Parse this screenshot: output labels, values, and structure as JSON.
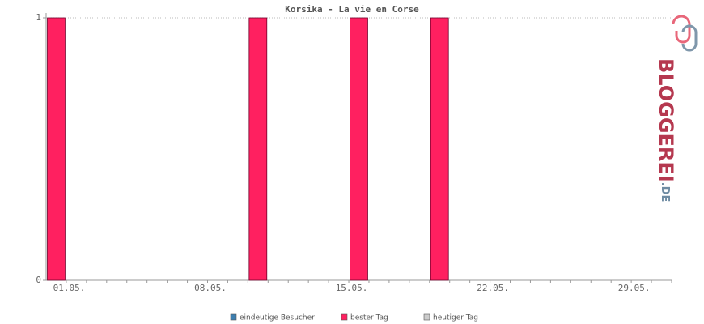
{
  "chart_data": {
    "type": "bar",
    "title": "Korsika - La vie en Corse",
    "categories": [
      "01.05.",
      null,
      null,
      null,
      null,
      null,
      null,
      "08.05.",
      null,
      null,
      null,
      null,
      null,
      null,
      "15.05.",
      null,
      null,
      null,
      null,
      null,
      null,
      "22.05.",
      null,
      null,
      null,
      null,
      null,
      null,
      "29.05.",
      null,
      null
    ],
    "series": [
      {
        "name": "eindeutige Besucher",
        "color": "#3d7fb0",
        "values": [
          0,
          0,
          0,
          0,
          0,
          0,
          0,
          0,
          0,
          0,
          0,
          0,
          0,
          0,
          0,
          0,
          0,
          0,
          0,
          0,
          0,
          0,
          0,
          0,
          0,
          0,
          0,
          0,
          0,
          0,
          0
        ]
      },
      {
        "name": "bester Tag",
        "color": "#ff2060",
        "values": [
          1,
          0,
          0,
          0,
          0,
          0,
          0,
          0,
          0,
          0,
          1,
          0,
          0,
          0,
          0,
          1,
          0,
          0,
          0,
          1,
          0,
          0,
          0,
          0,
          0,
          0,
          0,
          0,
          0,
          0,
          0
        ]
      },
      {
        "name": "heutiger Tag",
        "color": "#cccccc",
        "values": [
          null,
          null,
          null,
          null,
          null,
          null,
          null,
          null,
          null,
          null,
          null,
          null,
          null,
          null,
          null,
          null,
          null,
          null,
          null,
          null,
          null,
          null,
          null,
          null,
          null,
          null,
          null,
          null,
          null,
          null,
          null
        ]
      }
    ],
    "ylim": [
      0,
      1
    ],
    "yticks": [
      0,
      1
    ],
    "grid": true
  },
  "logo": {
    "name": "BLOGGEREI",
    "tld": ".DE"
  }
}
